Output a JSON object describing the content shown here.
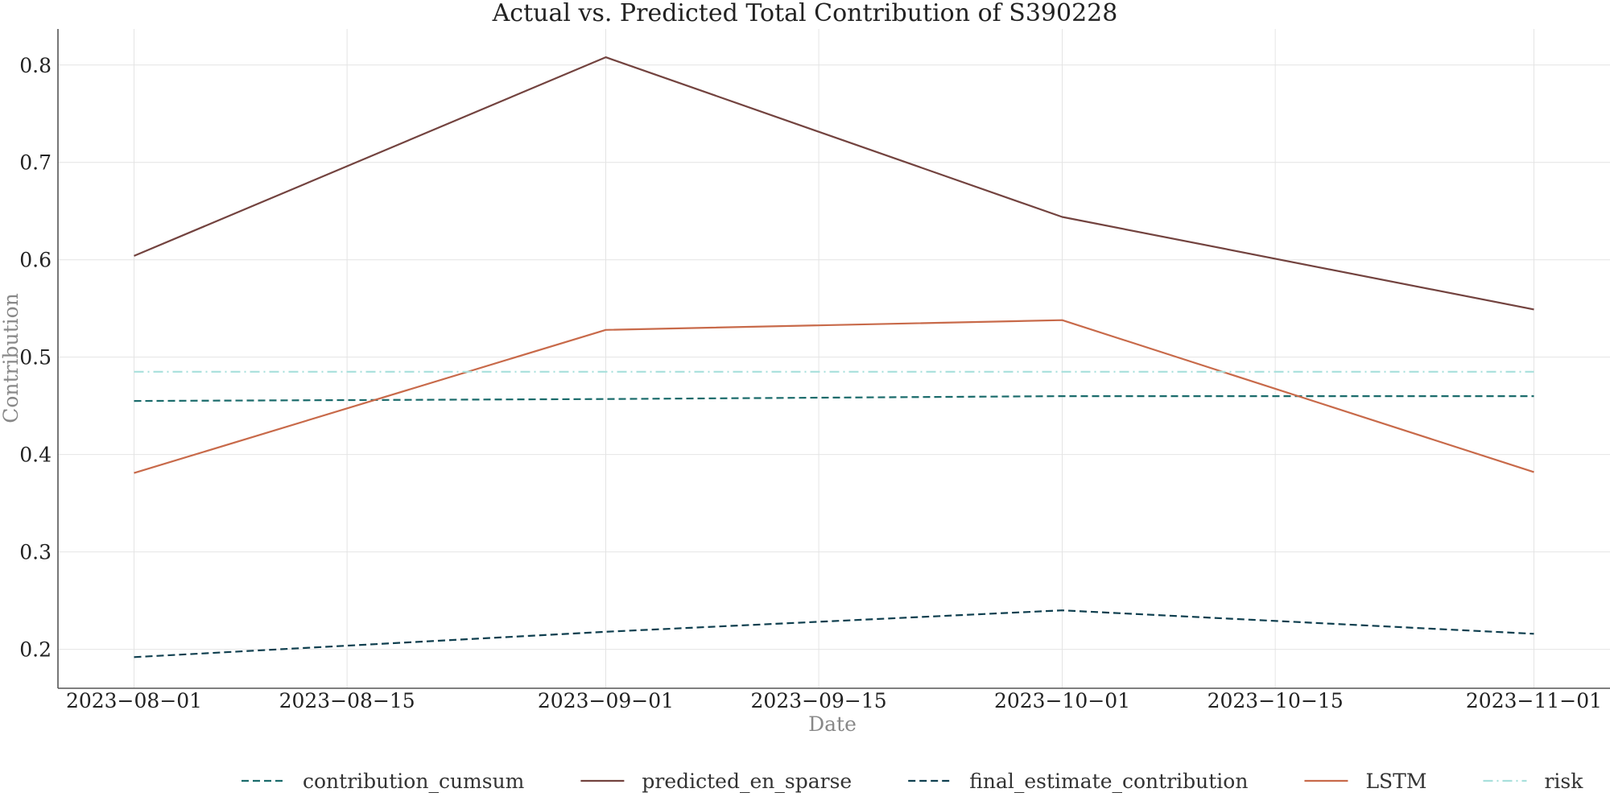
{
  "chart_data": {
    "type": "line",
    "title": "Actual vs. Predicted Total Contribution of S390228",
    "xlabel": "Date",
    "ylabel": "Contribution",
    "x": [
      "2023-08-01",
      "2023-09-01",
      "2023-10-01",
      "2023-11-01"
    ],
    "xticks": [
      "2023-08-01",
      "2023-08-15",
      "2023-09-01",
      "2023-09-15",
      "2023-10-01",
      "2023-10-15",
      "2023-11-01"
    ],
    "xlim": [
      "2023-07-27",
      "2023-11-06"
    ],
    "yticks": [
      0.2,
      0.3,
      0.4,
      0.5,
      0.6,
      0.7,
      0.8
    ],
    "ylim": [
      0.16,
      0.837
    ],
    "grid": true,
    "legend_position": "bottom",
    "series": [
      {
        "name": "contribution_cumsum",
        "values": [
          0.455,
          0.457,
          0.46,
          0.46
        ],
        "color": "#1a6b6b",
        "style": "dashed"
      },
      {
        "name": "predicted_en_sparse",
        "values": [
          0.604,
          0.808,
          0.644,
          0.549
        ],
        "color": "#73433f",
        "style": "solid"
      },
      {
        "name": "final_estimate_contribution",
        "values": [
          0.192,
          0.218,
          0.24,
          0.216
        ],
        "color": "#0f3f4f",
        "style": "dashed"
      },
      {
        "name": "LSTM",
        "values": [
          0.381,
          0.528,
          0.538,
          0.382
        ],
        "color": "#c86a4a",
        "style": "solid"
      },
      {
        "name": "risk",
        "values": [
          0.485,
          0.485,
          0.485,
          0.485
        ],
        "color": "#a8e0dc",
        "style": "dashdot"
      }
    ]
  }
}
